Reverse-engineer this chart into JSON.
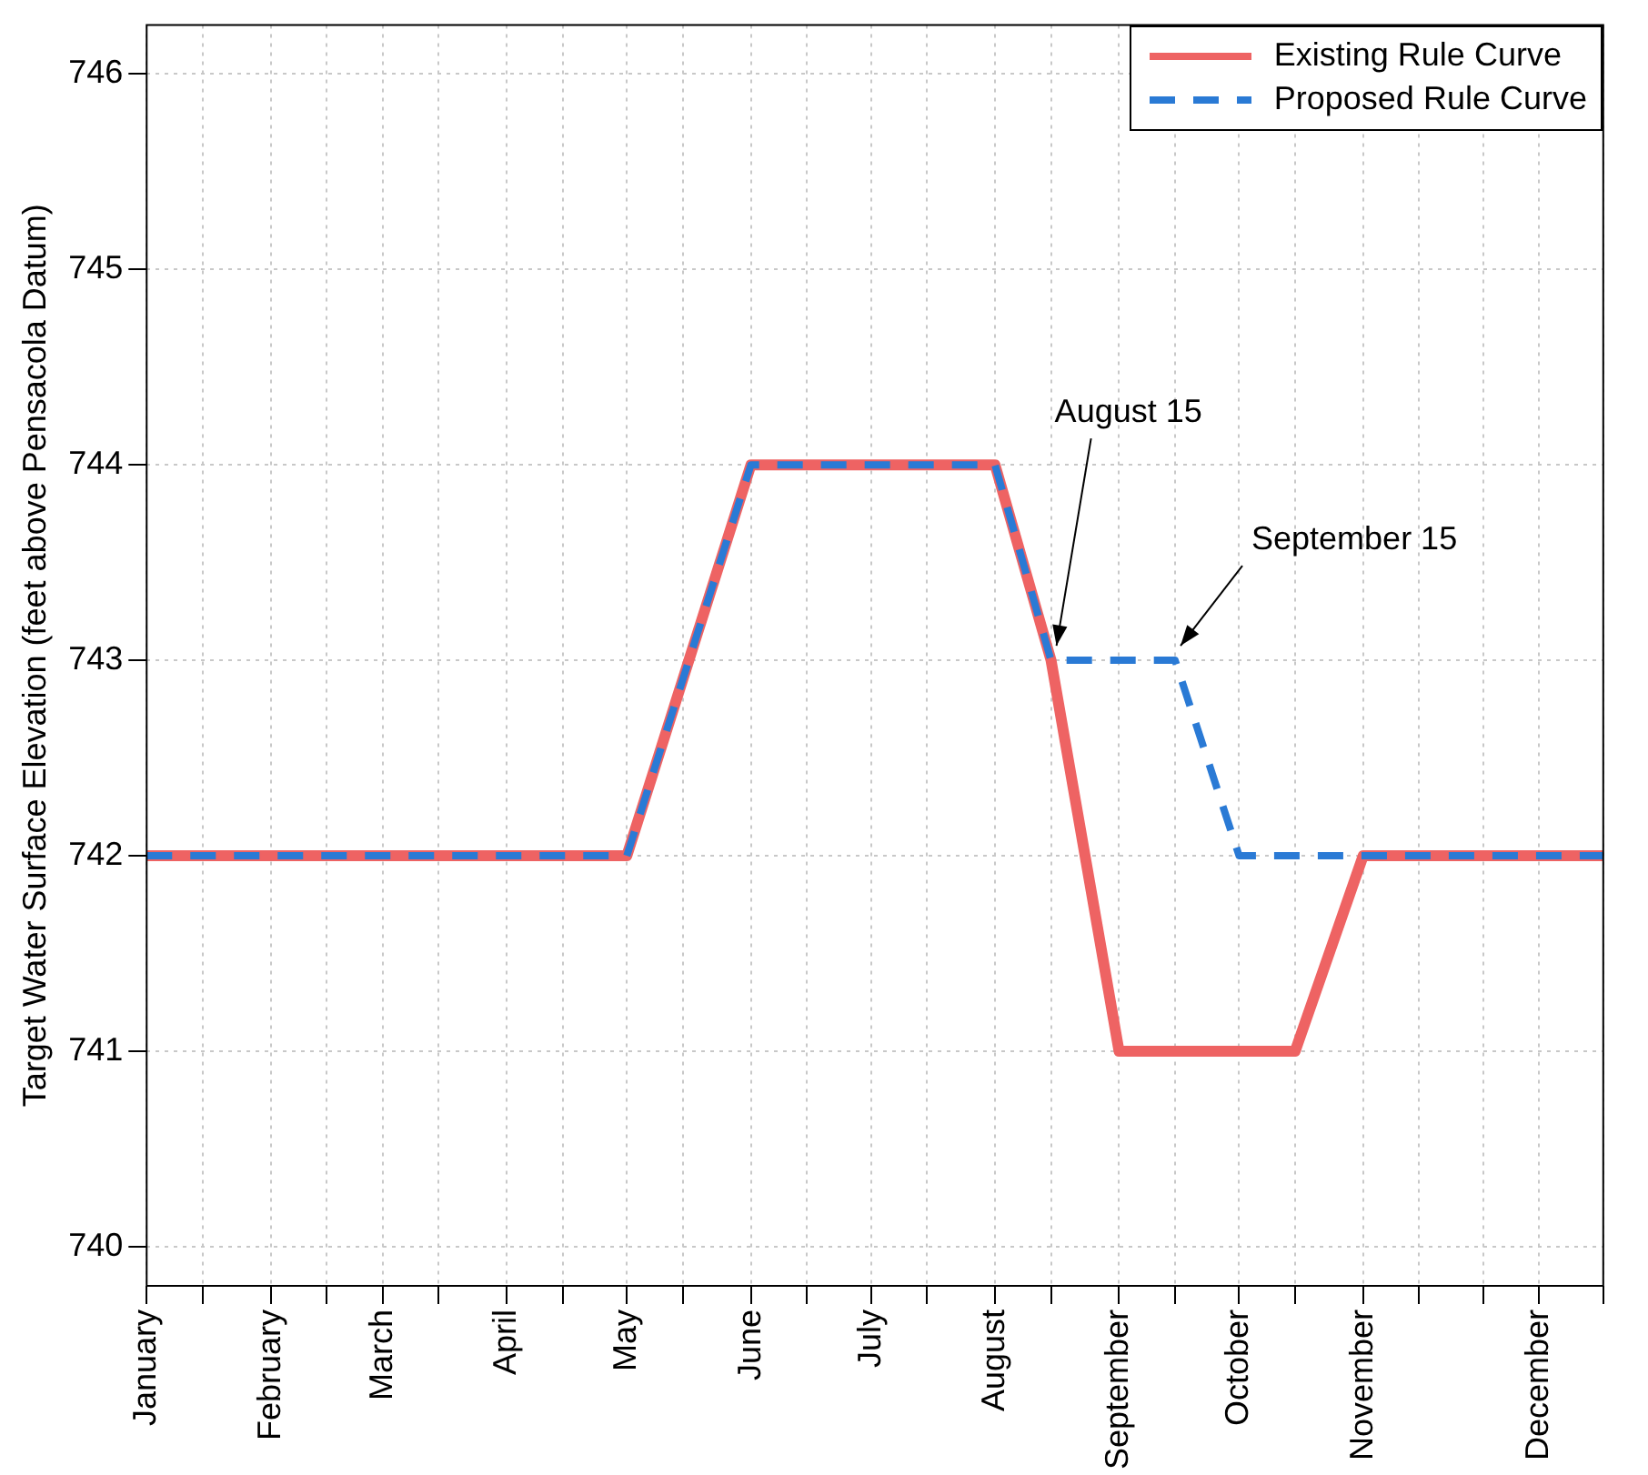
{
  "chart_data": {
    "type": "line",
    "ylabel": "Target Water Surface Elevation (feet above Pensacola Datum)",
    "xlim": [
      "--01-01",
      "--12-31"
    ],
    "ylim": [
      739.8,
      746.25
    ],
    "yticks": [
      740,
      741,
      742,
      743,
      744,
      745,
      746
    ],
    "xticks": [
      {
        "value": "--01-01",
        "label": "January"
      },
      {
        "value": "--01-15",
        "label": null
      },
      {
        "value": "--02-01",
        "label": "February"
      },
      {
        "value": "--02-15",
        "label": null
      },
      {
        "value": "--03-01",
        "label": "March"
      },
      {
        "value": "--03-15",
        "label": null
      },
      {
        "value": "--04-01",
        "label": "April"
      },
      {
        "value": "--04-15",
        "label": null
      },
      {
        "value": "--05-01",
        "label": "May"
      },
      {
        "value": "--05-15",
        "label": null
      },
      {
        "value": "--06-01",
        "label": "June"
      },
      {
        "value": "--06-15",
        "label": null
      },
      {
        "value": "--07-01",
        "label": "July"
      },
      {
        "value": "--07-15",
        "label": null
      },
      {
        "value": "--08-01",
        "label": "August"
      },
      {
        "value": "--08-15",
        "label": null
      },
      {
        "value": "--09-01",
        "label": "September"
      },
      {
        "value": "--09-15",
        "label": null
      },
      {
        "value": "--10-01",
        "label": "October"
      },
      {
        "value": "--10-15",
        "label": null
      },
      {
        "value": "--11-01",
        "label": "November"
      },
      {
        "value": "--11-15",
        "label": null
      },
      {
        "value": "--12-01",
        "label": null
      },
      {
        "value": "--12-15",
        "label": "December"
      },
      {
        "value": "--12-31",
        "label": null
      }
    ],
    "series": [
      {
        "name": "Existing Rule Curve",
        "color": "#ee6363",
        "line_style": "solid",
        "x": [
          "--01-01",
          "--05-01",
          "--06-01",
          "--08-01",
          "--08-15",
          "--09-01",
          "--10-15",
          "--11-01",
          "--12-31"
        ],
        "values": [
          742,
          742,
          744,
          744,
          743,
          741,
          741,
          742,
          742
        ]
      },
      {
        "name": "Proposed Rule Curve",
        "color": "#2a7ad5",
        "line_style": "dashed",
        "x": [
          "--01-01",
          "--05-01",
          "--06-01",
          "--08-01",
          "--08-15",
          "--09-15",
          "--10-01",
          "--12-31"
        ],
        "values": [
          742,
          742,
          744,
          744,
          743,
          743,
          742,
          742
        ]
      }
    ],
    "annotations": [
      {
        "text": "August 15",
        "x": "--08-15",
        "y": 743
      },
      {
        "text": "September 15",
        "x": "--09-15",
        "y": 743
      }
    ],
    "grid": true,
    "legend": "top right",
    "marker": "none"
  }
}
